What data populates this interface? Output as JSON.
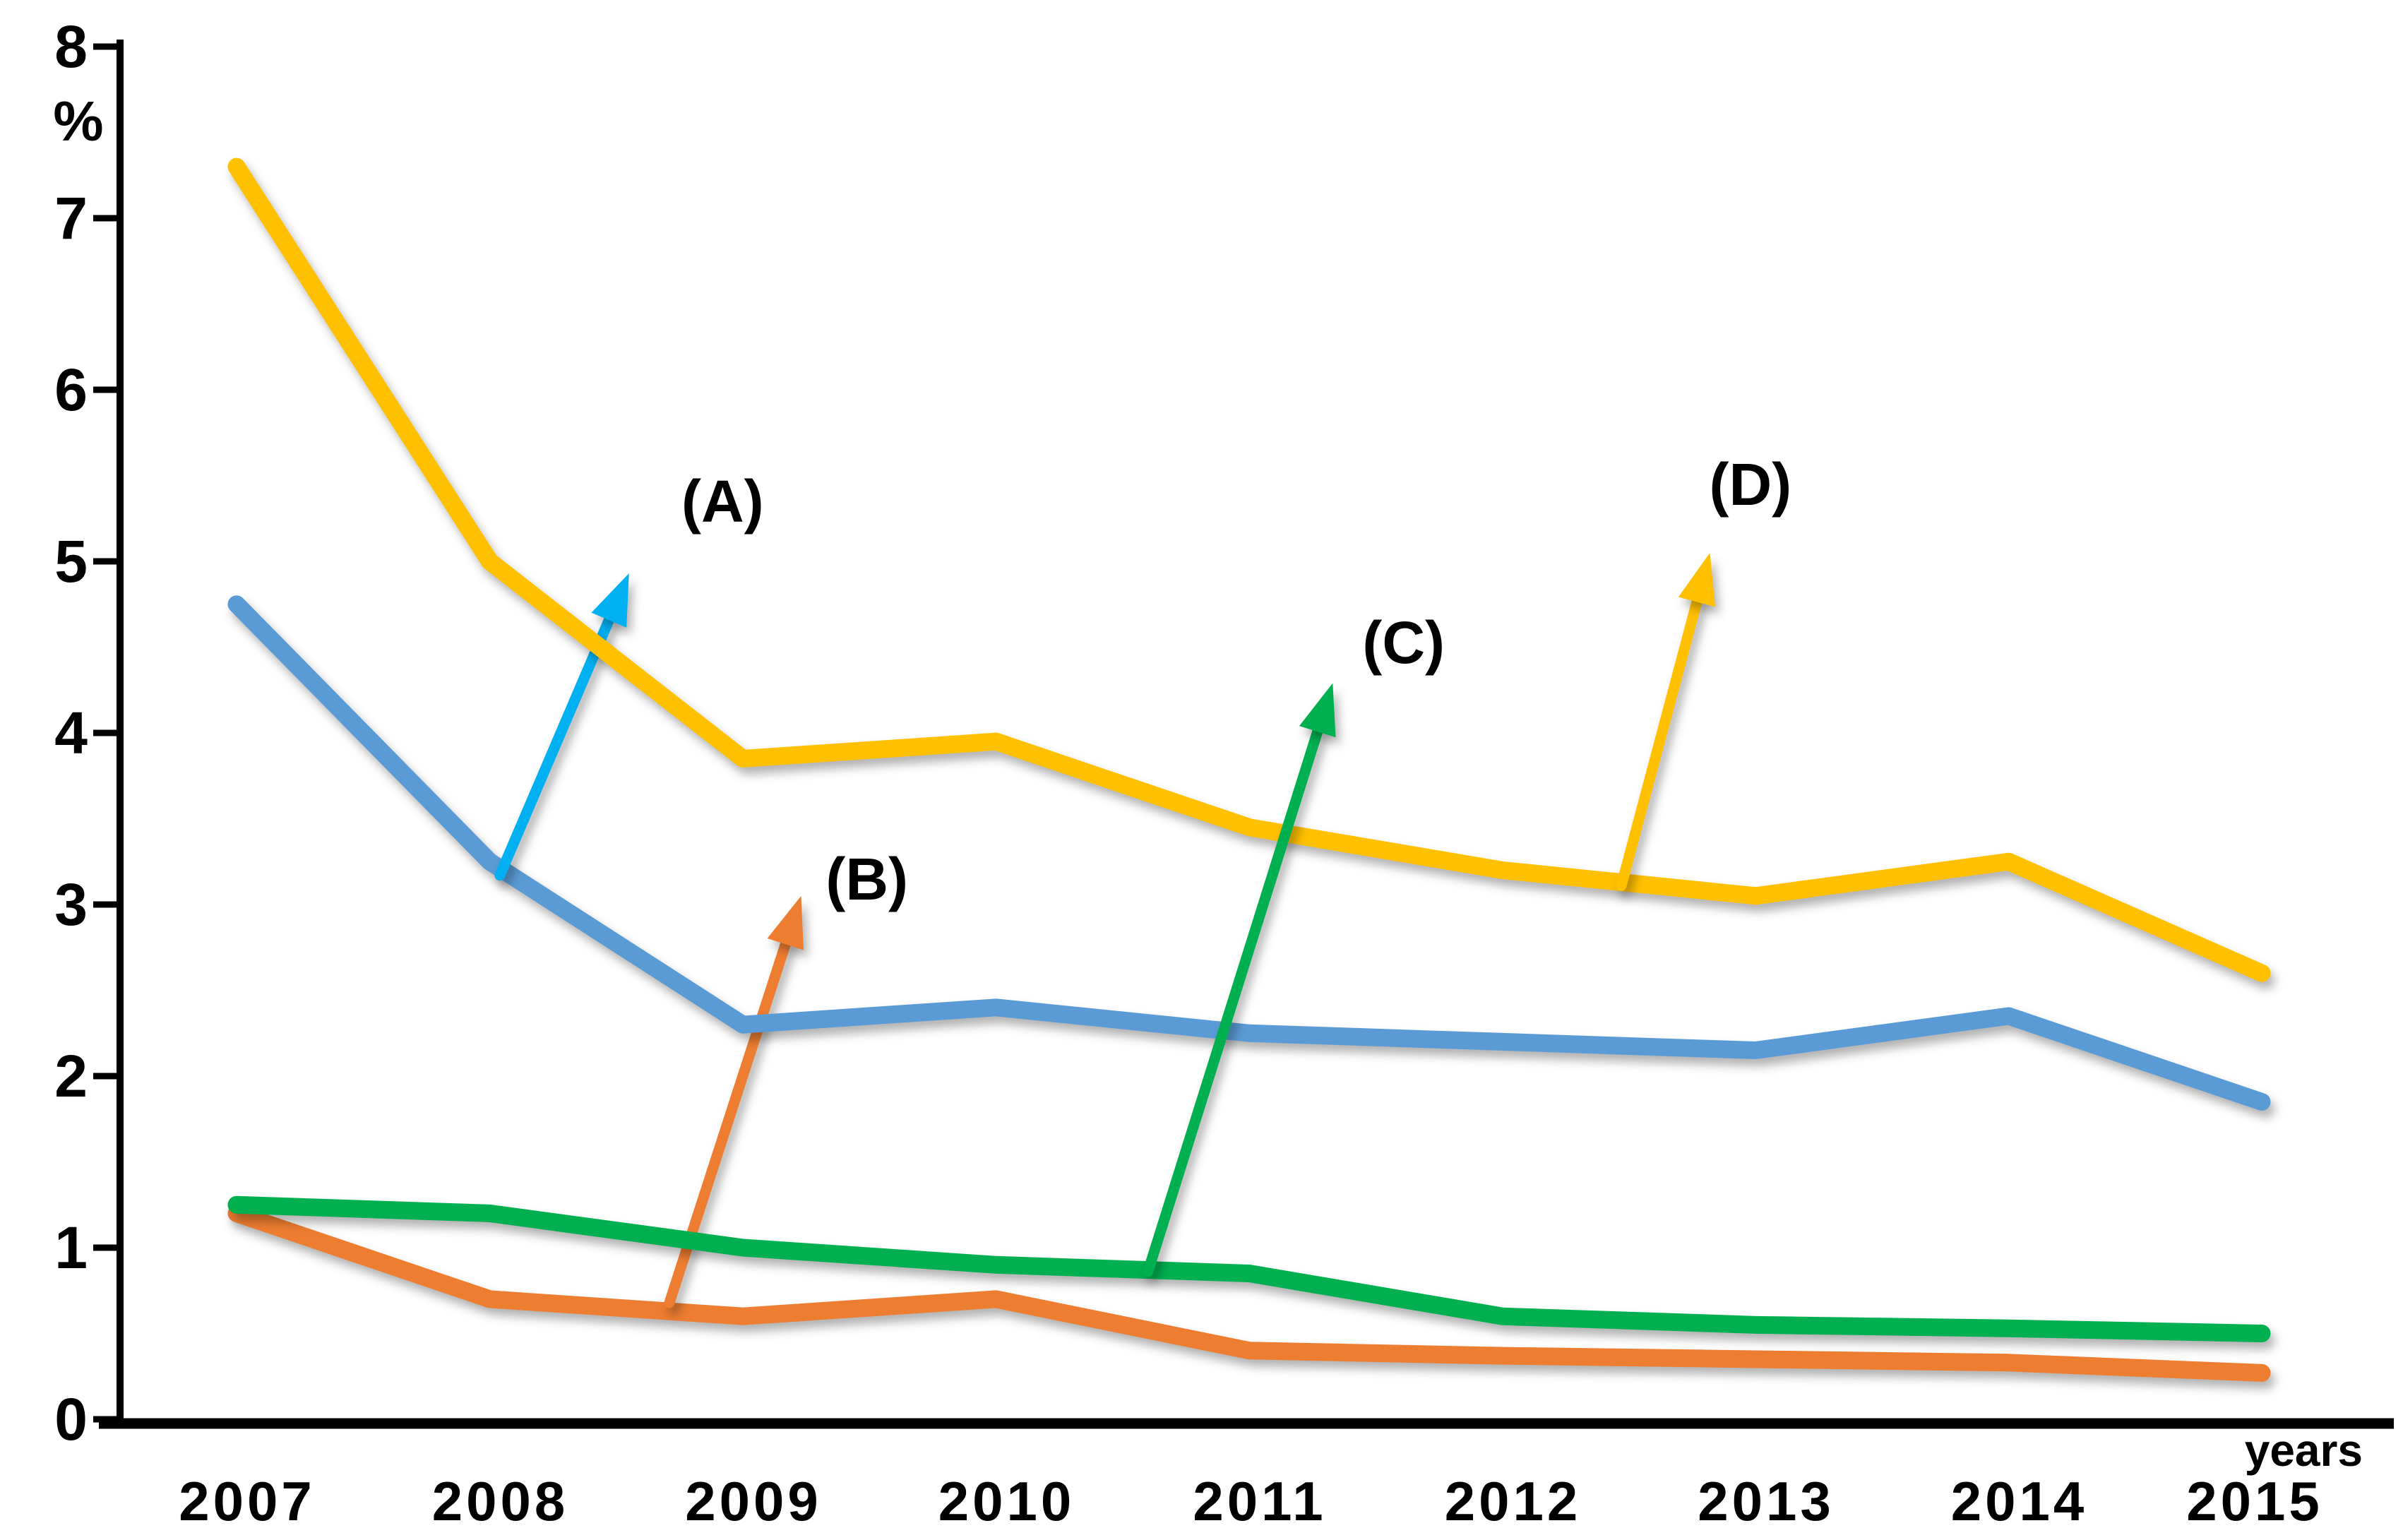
{
  "chart_data": {
    "type": "line",
    "title": "",
    "xlabel": "years",
    "ylabel": "%",
    "x": [
      2007,
      2008,
      2009,
      2010,
      2011,
      2012,
      2013,
      2014,
      2015
    ],
    "xtick_labels": [
      "2007",
      "2008",
      "2009",
      "2010",
      "2011",
      "2012",
      "2013",
      "2014",
      "2015"
    ],
    "yticks": [
      "0",
      "1",
      "2",
      "3",
      "4",
      "5",
      "6",
      "7",
      "8"
    ],
    "ylim": [
      0,
      8
    ],
    "grid": false,
    "legend_position": "arrow-annotations-on-plot",
    "axis_color": "#000000",
    "series": [
      {
        "name": "(A)",
        "color": "#5B9BD5",
        "values": [
          4.75,
          3.25,
          2.3,
          2.4,
          2.25,
          2.2,
          2.15,
          2.35,
          1.85
        ]
      },
      {
        "name": "(B)",
        "color": "#ED7D31",
        "values": [
          1.2,
          0.7,
          0.6,
          0.7,
          0.4,
          0.37,
          0.35,
          0.33,
          0.27
        ]
      },
      {
        "name": "(C)",
        "color": "#00B050",
        "values": [
          1.25,
          1.2,
          1.0,
          0.9,
          0.85,
          0.6,
          0.55,
          0.53,
          0.5
        ]
      },
      {
        "name": "(D)",
        "color": "#FFC000",
        "values": [
          7.3,
          5.0,
          3.85,
          3.95,
          3.45,
          3.2,
          3.05,
          3.25,
          2.6
        ]
      }
    ],
    "annotations": [
      {
        "label": "(A)",
        "arrow_color": "#00B0F0",
        "from": {
          "year": 2008.04,
          "value": 3.17
        },
        "to": {
          "year": 2008.55,
          "value": 4.93
        },
        "label_at": {
          "year": 2008.92,
          "value": 5.34
        }
      },
      {
        "label": "(B)",
        "arrow_color": "#ED7D31",
        "from": {
          "year": 2008.71,
          "value": 0.68
        },
        "to": {
          "year": 2009.23,
          "value": 3.05
        },
        "label_at": {
          "year": 2009.49,
          "value": 3.14
        }
      },
      {
        "label": "(C)",
        "arrow_color": "#00B050",
        "from": {
          "year": 2010.6,
          "value": 0.86
        },
        "to": {
          "year": 2011.33,
          "value": 4.29
        },
        "label_at": {
          "year": 2011.61,
          "value": 4.52
        }
      },
      {
        "label": "(D)",
        "arrow_color": "#FFC000",
        "from": {
          "year": 2012.47,
          "value": 3.11
        },
        "to": {
          "year": 2012.82,
          "value": 5.05
        },
        "label_at": {
          "year": 2012.98,
          "value": 5.44
        }
      }
    ]
  }
}
